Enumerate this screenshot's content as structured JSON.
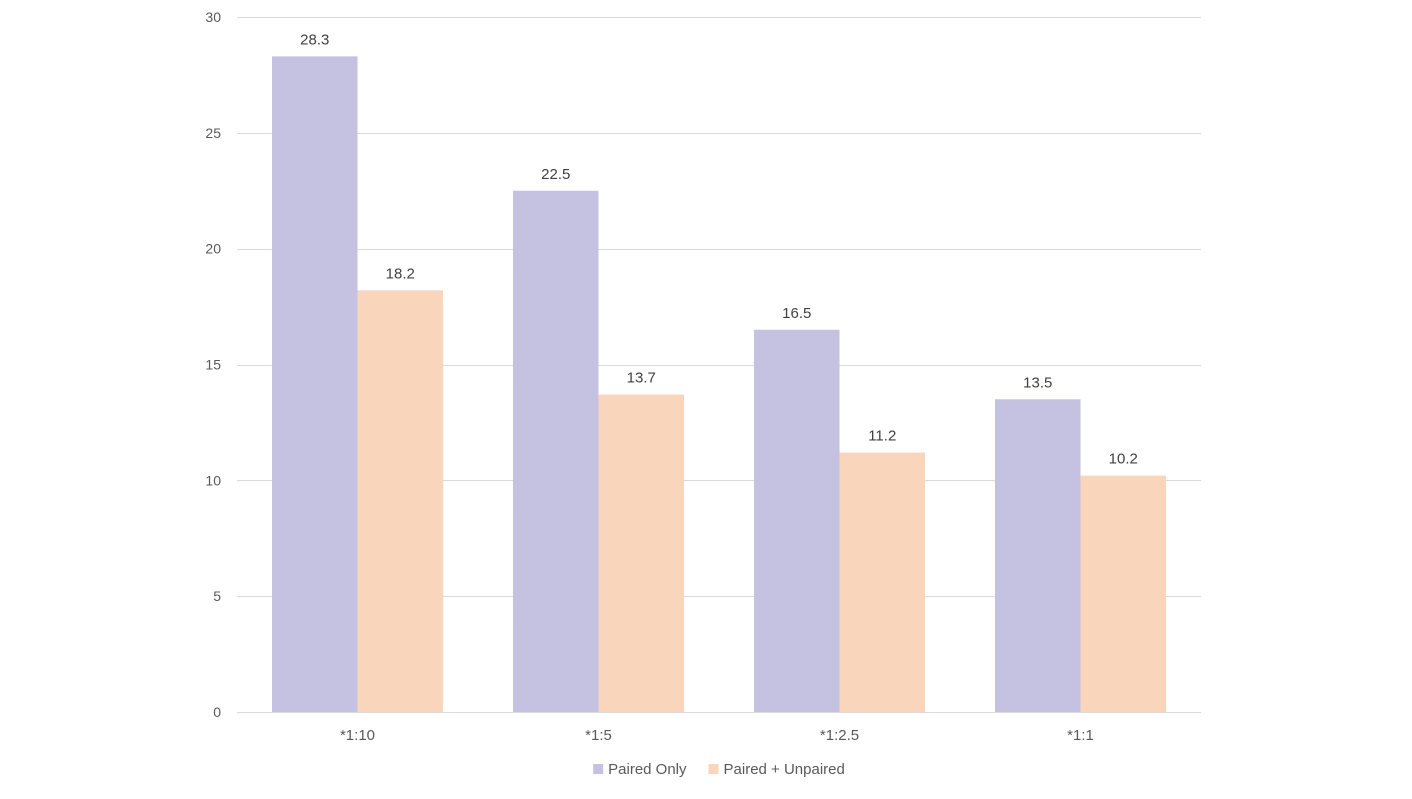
{
  "chart_data": {
    "type": "bar",
    "title": "",
    "xlabel": "",
    "ylabel": "",
    "categories": [
      "*1:10",
      "*1:5",
      "*1:2.5",
      "*1:1"
    ],
    "series": [
      {
        "name": "Paired Only",
        "color": "#c5c2e1",
        "values": [
          28.3,
          22.5,
          16.5,
          13.5
        ]
      },
      {
        "name": "Paired + Unpaired",
        "color": "#f8d5bb",
        "values": [
          18.2,
          13.7,
          11.2,
          10.2
        ]
      }
    ],
    "ylim": [
      0,
      30
    ],
    "yticks": [
      0,
      5,
      10,
      15,
      20,
      25,
      30
    ],
    "grid": true,
    "legend_position": "bottom",
    "data_labels": true,
    "gridline_color": "#d9d9d9"
  }
}
